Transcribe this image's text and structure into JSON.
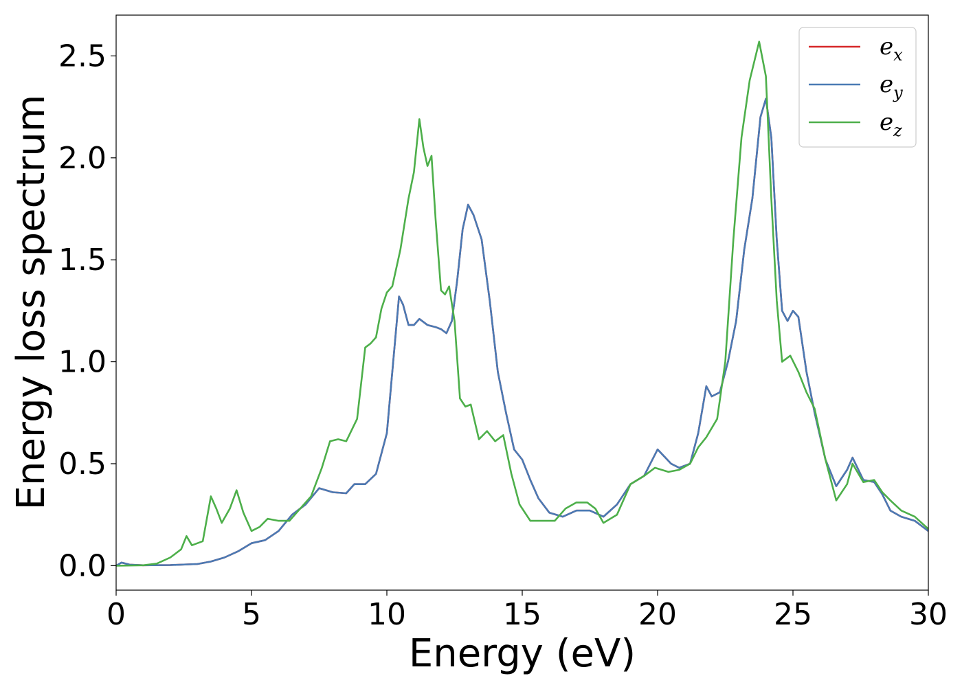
{
  "chart_data": {
    "type": "line",
    "xlabel": "Energy (eV)",
    "ylabel": "Energy loss spectrum",
    "xlim": [
      0,
      30
    ],
    "ylim": [
      -0.12,
      2.7
    ],
    "xticks": [
      0,
      5,
      10,
      15,
      20,
      25,
      30
    ],
    "xtick_labels": [
      "0",
      "5",
      "10",
      "15",
      "20",
      "25",
      "30"
    ],
    "yticks": [
      0.0,
      0.5,
      1.0,
      1.5,
      2.0,
      2.5
    ],
    "ytick_labels": [
      "0.0",
      "0.5",
      "1.0",
      "1.5",
      "2.0",
      "2.5"
    ],
    "grid": false,
    "legend_position": "top-right",
    "series": [
      {
        "name": "e_x",
        "label_main": "e",
        "label_sub": "x",
        "color": "#d62728",
        "points": [
          [
            0,
            0
          ],
          [
            0.2,
            0.015
          ],
          [
            0.5,
            0.005
          ],
          [
            1,
            0.002
          ],
          [
            2,
            0.003
          ],
          [
            3,
            0.008
          ],
          [
            3.5,
            0.02
          ],
          [
            4,
            0.04
          ],
          [
            4.5,
            0.07
          ],
          [
            5,
            0.11
          ],
          [
            5.5,
            0.125
          ],
          [
            6,
            0.17
          ],
          [
            6.5,
            0.25
          ],
          [
            7,
            0.3
          ],
          [
            7.5,
            0.38
          ],
          [
            8,
            0.36
          ],
          [
            8.5,
            0.355
          ],
          [
            8.8,
            0.4
          ],
          [
            9.2,
            0.4
          ],
          [
            9.6,
            0.45
          ],
          [
            10,
            0.65
          ],
          [
            10.2,
            0.95
          ],
          [
            10.45,
            1.32
          ],
          [
            10.6,
            1.28
          ],
          [
            10.8,
            1.18
          ],
          [
            11,
            1.18
          ],
          [
            11.2,
            1.21
          ],
          [
            11.5,
            1.18
          ],
          [
            11.8,
            1.17
          ],
          [
            12,
            1.16
          ],
          [
            12.2,
            1.14
          ],
          [
            12.4,
            1.2
          ],
          [
            12.6,
            1.4
          ],
          [
            12.8,
            1.65
          ],
          [
            13,
            1.77
          ],
          [
            13.2,
            1.72
          ],
          [
            13.5,
            1.6
          ],
          [
            13.8,
            1.3
          ],
          [
            14.1,
            0.95
          ],
          [
            14.4,
            0.75
          ],
          [
            14.7,
            0.57
          ],
          [
            15,
            0.52
          ],
          [
            15.3,
            0.42
          ],
          [
            15.6,
            0.33
          ],
          [
            16,
            0.26
          ],
          [
            16.5,
            0.24
          ],
          [
            17,
            0.27
          ],
          [
            17.5,
            0.27
          ],
          [
            18,
            0.24
          ],
          [
            18.5,
            0.3
          ],
          [
            19,
            0.4
          ],
          [
            19.5,
            0.44
          ],
          [
            20,
            0.57
          ],
          [
            20.5,
            0.5
          ],
          [
            20.8,
            0.48
          ],
          [
            21.2,
            0.5
          ],
          [
            21.5,
            0.65
          ],
          [
            21.8,
            0.88
          ],
          [
            22,
            0.83
          ],
          [
            22.3,
            0.85
          ],
          [
            22.6,
            1.0
          ],
          [
            22.9,
            1.2
          ],
          [
            23.2,
            1.55
          ],
          [
            23.5,
            1.8
          ],
          [
            23.8,
            2.2
          ],
          [
            24,
            2.29
          ],
          [
            24.2,
            2.1
          ],
          [
            24.4,
            1.6
          ],
          [
            24.6,
            1.25
          ],
          [
            24.8,
            1.2
          ],
          [
            25,
            1.25
          ],
          [
            25.2,
            1.22
          ],
          [
            25.5,
            0.95
          ],
          [
            25.8,
            0.75
          ],
          [
            26.2,
            0.52
          ],
          [
            26.6,
            0.39
          ],
          [
            27,
            0.47
          ],
          [
            27.2,
            0.53
          ],
          [
            27.6,
            0.42
          ],
          [
            28,
            0.41
          ],
          [
            28.3,
            0.35
          ],
          [
            28.6,
            0.27
          ],
          [
            29,
            0.24
          ],
          [
            29.5,
            0.22
          ],
          [
            30,
            0.17
          ]
        ]
      },
      {
        "name": "e_y",
        "label_main": "e",
        "label_sub": "y",
        "color": "#4a7ab4",
        "points": [
          [
            0,
            0
          ],
          [
            0.2,
            0.015
          ],
          [
            0.5,
            0.005
          ],
          [
            1,
            0.002
          ],
          [
            2,
            0.003
          ],
          [
            3,
            0.008
          ],
          [
            3.5,
            0.02
          ],
          [
            4,
            0.04
          ],
          [
            4.5,
            0.07
          ],
          [
            5,
            0.11
          ],
          [
            5.5,
            0.125
          ],
          [
            6,
            0.17
          ],
          [
            6.5,
            0.25
          ],
          [
            7,
            0.3
          ],
          [
            7.5,
            0.38
          ],
          [
            8,
            0.36
          ],
          [
            8.5,
            0.355
          ],
          [
            8.8,
            0.4
          ],
          [
            9.2,
            0.4
          ],
          [
            9.6,
            0.45
          ],
          [
            10,
            0.65
          ],
          [
            10.2,
            0.95
          ],
          [
            10.45,
            1.32
          ],
          [
            10.6,
            1.28
          ],
          [
            10.8,
            1.18
          ],
          [
            11,
            1.18
          ],
          [
            11.2,
            1.21
          ],
          [
            11.5,
            1.18
          ],
          [
            11.8,
            1.17
          ],
          [
            12,
            1.16
          ],
          [
            12.2,
            1.14
          ],
          [
            12.4,
            1.2
          ],
          [
            12.6,
            1.4
          ],
          [
            12.8,
            1.65
          ],
          [
            13,
            1.77
          ],
          [
            13.2,
            1.72
          ],
          [
            13.5,
            1.6
          ],
          [
            13.8,
            1.3
          ],
          [
            14.1,
            0.95
          ],
          [
            14.4,
            0.75
          ],
          [
            14.7,
            0.57
          ],
          [
            15,
            0.52
          ],
          [
            15.3,
            0.42
          ],
          [
            15.6,
            0.33
          ],
          [
            16,
            0.26
          ],
          [
            16.5,
            0.24
          ],
          [
            17,
            0.27
          ],
          [
            17.5,
            0.27
          ],
          [
            18,
            0.24
          ],
          [
            18.5,
            0.3
          ],
          [
            19,
            0.4
          ],
          [
            19.5,
            0.44
          ],
          [
            20,
            0.57
          ],
          [
            20.5,
            0.5
          ],
          [
            20.8,
            0.48
          ],
          [
            21.2,
            0.5
          ],
          [
            21.5,
            0.65
          ],
          [
            21.8,
            0.88
          ],
          [
            22,
            0.83
          ],
          [
            22.3,
            0.85
          ],
          [
            22.6,
            1.0
          ],
          [
            22.9,
            1.2
          ],
          [
            23.2,
            1.55
          ],
          [
            23.5,
            1.8
          ],
          [
            23.8,
            2.2
          ],
          [
            24,
            2.29
          ],
          [
            24.2,
            2.1
          ],
          [
            24.4,
            1.6
          ],
          [
            24.6,
            1.25
          ],
          [
            24.8,
            1.2
          ],
          [
            25,
            1.25
          ],
          [
            25.2,
            1.22
          ],
          [
            25.5,
            0.95
          ],
          [
            25.8,
            0.75
          ],
          [
            26.2,
            0.52
          ],
          [
            26.6,
            0.39
          ],
          [
            27,
            0.47
          ],
          [
            27.2,
            0.53
          ],
          [
            27.6,
            0.42
          ],
          [
            28,
            0.41
          ],
          [
            28.3,
            0.35
          ],
          [
            28.6,
            0.27
          ],
          [
            29,
            0.24
          ],
          [
            29.5,
            0.22
          ],
          [
            30,
            0.17
          ]
        ]
      },
      {
        "name": "e_z",
        "label_main": "e",
        "label_sub": "z",
        "color": "#4daf4a",
        "points": [
          [
            0,
            0
          ],
          [
            1,
            0.002
          ],
          [
            1.5,
            0.01
          ],
          [
            2,
            0.04
          ],
          [
            2.4,
            0.08
          ],
          [
            2.6,
            0.145
          ],
          [
            2.8,
            0.1
          ],
          [
            3.2,
            0.12
          ],
          [
            3.5,
            0.34
          ],
          [
            3.7,
            0.28
          ],
          [
            3.9,
            0.21
          ],
          [
            4.2,
            0.28
          ],
          [
            4.45,
            0.37
          ],
          [
            4.7,
            0.26
          ],
          [
            5,
            0.17
          ],
          [
            5.3,
            0.19
          ],
          [
            5.6,
            0.23
          ],
          [
            6,
            0.22
          ],
          [
            6.4,
            0.22
          ],
          [
            6.8,
            0.28
          ],
          [
            7.2,
            0.34
          ],
          [
            7.6,
            0.48
          ],
          [
            7.9,
            0.61
          ],
          [
            8.2,
            0.62
          ],
          [
            8.5,
            0.61
          ],
          [
            8.9,
            0.72
          ],
          [
            9.2,
            1.07
          ],
          [
            9.4,
            1.09
          ],
          [
            9.6,
            1.12
          ],
          [
            9.8,
            1.26
          ],
          [
            10,
            1.34
          ],
          [
            10.2,
            1.37
          ],
          [
            10.5,
            1.55
          ],
          [
            10.8,
            1.8
          ],
          [
            11,
            1.93
          ],
          [
            11.2,
            2.19
          ],
          [
            11.35,
            2.05
          ],
          [
            11.5,
            1.96
          ],
          [
            11.65,
            2.01
          ],
          [
            11.8,
            1.7
          ],
          [
            12,
            1.35
          ],
          [
            12.15,
            1.33
          ],
          [
            12.3,
            1.37
          ],
          [
            12.5,
            1.2
          ],
          [
            12.7,
            0.82
          ],
          [
            12.9,
            0.78
          ],
          [
            13.1,
            0.79
          ],
          [
            13.4,
            0.62
          ],
          [
            13.7,
            0.66
          ],
          [
            14,
            0.61
          ],
          [
            14.3,
            0.64
          ],
          [
            14.6,
            0.45
          ],
          [
            14.9,
            0.3
          ],
          [
            15.3,
            0.22
          ],
          [
            15.7,
            0.22
          ],
          [
            16.2,
            0.22
          ],
          [
            16.6,
            0.28
          ],
          [
            17,
            0.31
          ],
          [
            17.4,
            0.31
          ],
          [
            17.7,
            0.28
          ],
          [
            18,
            0.21
          ],
          [
            18.5,
            0.25
          ],
          [
            19,
            0.4
          ],
          [
            19.5,
            0.44
          ],
          [
            19.9,
            0.48
          ],
          [
            20.4,
            0.46
          ],
          [
            20.8,
            0.47
          ],
          [
            21.2,
            0.5
          ],
          [
            21.5,
            0.58
          ],
          [
            21.8,
            0.63
          ],
          [
            22.2,
            0.72
          ],
          [
            22.5,
            1.0
          ],
          [
            22.8,
            1.6
          ],
          [
            23.1,
            2.1
          ],
          [
            23.4,
            2.38
          ],
          [
            23.75,
            2.57
          ],
          [
            24,
            2.4
          ],
          [
            24.2,
            1.8
          ],
          [
            24.4,
            1.3
          ],
          [
            24.6,
            1.0
          ],
          [
            24.9,
            1.03
          ],
          [
            25.2,
            0.95
          ],
          [
            25.5,
            0.85
          ],
          [
            25.8,
            0.77
          ],
          [
            26.2,
            0.52
          ],
          [
            26.6,
            0.32
          ],
          [
            27,
            0.4
          ],
          [
            27.2,
            0.5
          ],
          [
            27.6,
            0.41
          ],
          [
            28,
            0.42
          ],
          [
            28.3,
            0.36
          ],
          [
            28.6,
            0.32
          ],
          [
            29,
            0.27
          ],
          [
            29.5,
            0.24
          ],
          [
            30,
            0.18
          ]
        ]
      }
    ]
  }
}
